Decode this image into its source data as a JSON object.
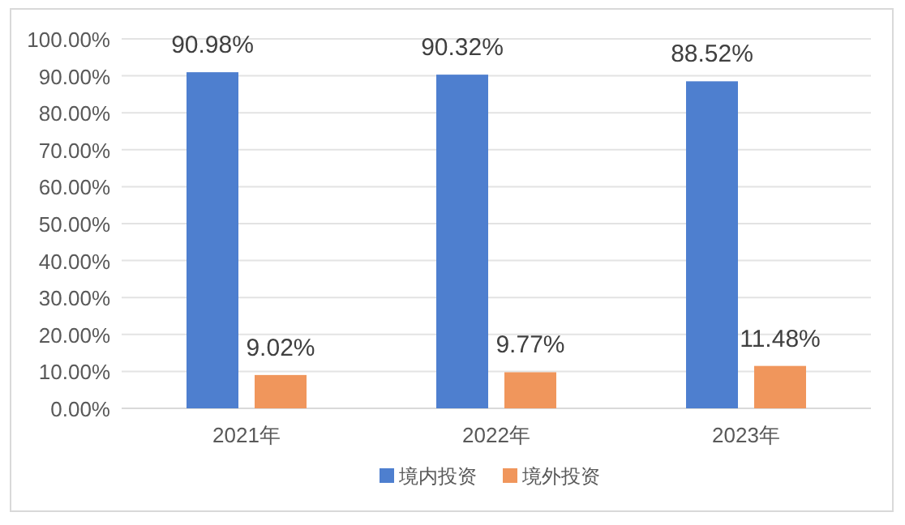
{
  "chart_data": {
    "type": "bar",
    "categories": [
      "2021年",
      "2022年",
      "2023年"
    ],
    "series": [
      {
        "name": "境内投资",
        "color": "#4e7fcf",
        "values": [
          90.98,
          90.32,
          88.52
        ],
        "value_labels": [
          "90.98%",
          "90.32%",
          "88.52%"
        ]
      },
      {
        "name": "境外投资",
        "color": "#f0965c",
        "values": [
          9.02,
          9.77,
          11.48
        ],
        "value_labels": [
          "9.02%",
          "9.77%",
          "11.48%"
        ]
      }
    ],
    "ylim": [
      0,
      100
    ],
    "yticks": [
      {
        "value": 0,
        "label": "0.00%"
      },
      {
        "value": 10,
        "label": "10.00%"
      },
      {
        "value": 20,
        "label": "20.00%"
      },
      {
        "value": 30,
        "label": "30.00%"
      },
      {
        "value": 40,
        "label": "40.00%"
      },
      {
        "value": 50,
        "label": "50.00%"
      },
      {
        "value": 60,
        "label": "60.00%"
      },
      {
        "value": 70,
        "label": "70.00%"
      },
      {
        "value": 80,
        "label": "80.00%"
      },
      {
        "value": 90,
        "label": "90.00%"
      },
      {
        "value": 100,
        "label": "100.00%"
      }
    ],
    "grid": "y",
    "legend": "bottom"
  }
}
